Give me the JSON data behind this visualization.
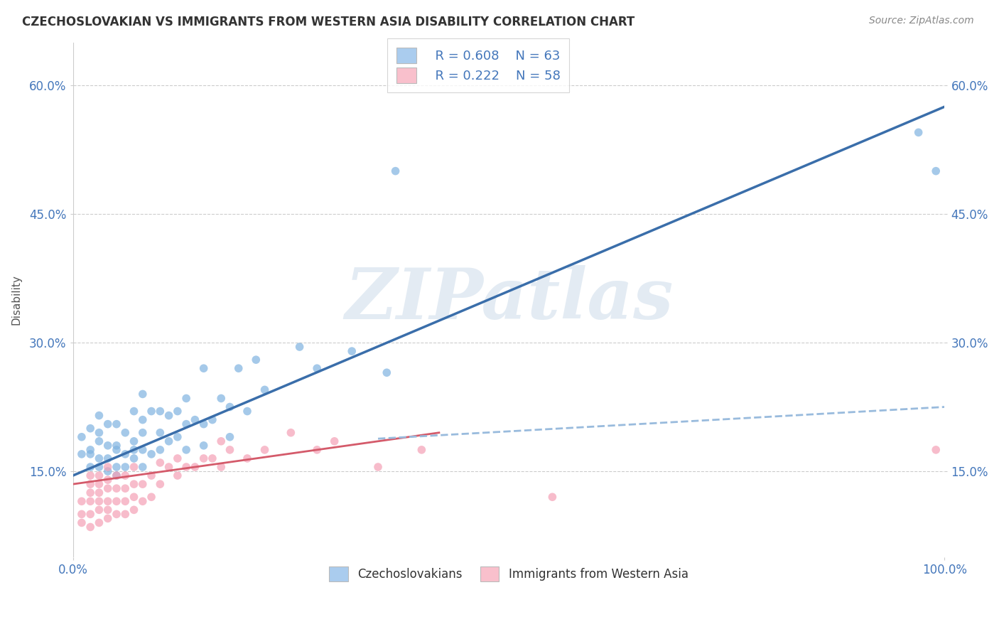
{
  "title": "CZECHOSLOVAKIAN VS IMMIGRANTS FROM WESTERN ASIA DISABILITY CORRELATION CHART",
  "source": "Source: ZipAtlas.com",
  "ylabel": "Disability",
  "xlim": [
    0,
    1.0
  ],
  "ylim": [
    0.05,
    0.65
  ],
  "ytick_values": [
    0.15,
    0.3,
    0.45,
    0.6
  ],
  "ytick_labels": [
    "15.0%",
    "30.0%",
    "45.0%",
    "60.0%"
  ],
  "xtick_values": [
    0.0,
    1.0
  ],
  "xtick_labels": [
    "0.0%",
    "100.0%"
  ],
  "grid_color": "#cccccc",
  "background_color": "#ffffff",
  "watermark_text": "ZIPatlas",
  "legend_r1": "R = 0.608",
  "legend_n1": "N = 63",
  "legend_r2": "R = 0.222",
  "legend_n2": "N = 58",
  "blue_scatter_color": "#7fb3e0",
  "pink_scatter_color": "#f4a0b5",
  "blue_fill": "#aaccee",
  "pink_fill": "#f9c0cc",
  "trend_blue_color": "#3a6eaa",
  "trend_pink_color": "#d45a6a",
  "trend_dash_color": "#99bbdd",
  "title_color": "#333333",
  "axis_label_color": "#555555",
  "tick_color": "#4477bb",
  "legend_text_color": "#4477bb",
  "trend_blue_x0": 0.0,
  "trend_blue_x1": 1.0,
  "trend_blue_y0": 0.145,
  "trend_blue_y1": 0.575,
  "trend_pink_x0": 0.0,
  "trend_pink_x1": 0.42,
  "trend_pink_y0": 0.135,
  "trend_pink_y1": 0.195,
  "trend_dash_x0": 0.35,
  "trend_dash_x1": 1.0,
  "trend_dash_y0": 0.188,
  "trend_dash_y1": 0.225,
  "scatter_blue_x": [
    0.01,
    0.01,
    0.02,
    0.02,
    0.02,
    0.02,
    0.03,
    0.03,
    0.03,
    0.03,
    0.03,
    0.04,
    0.04,
    0.04,
    0.04,
    0.05,
    0.05,
    0.05,
    0.05,
    0.05,
    0.06,
    0.06,
    0.06,
    0.07,
    0.07,
    0.07,
    0.07,
    0.08,
    0.08,
    0.08,
    0.08,
    0.08,
    0.09,
    0.09,
    0.1,
    0.1,
    0.1,
    0.11,
    0.11,
    0.12,
    0.12,
    0.13,
    0.13,
    0.13,
    0.14,
    0.15,
    0.15,
    0.15,
    0.16,
    0.17,
    0.18,
    0.18,
    0.19,
    0.2,
    0.21,
    0.22,
    0.26,
    0.28,
    0.32,
    0.36,
    0.37,
    0.97,
    0.99
  ],
  "scatter_blue_y": [
    0.17,
    0.19,
    0.155,
    0.17,
    0.175,
    0.2,
    0.155,
    0.165,
    0.185,
    0.195,
    0.215,
    0.15,
    0.165,
    0.18,
    0.205,
    0.145,
    0.155,
    0.175,
    0.18,
    0.205,
    0.155,
    0.17,
    0.195,
    0.165,
    0.175,
    0.185,
    0.22,
    0.155,
    0.175,
    0.195,
    0.21,
    0.24,
    0.17,
    0.22,
    0.175,
    0.195,
    0.22,
    0.185,
    0.215,
    0.19,
    0.22,
    0.175,
    0.205,
    0.235,
    0.21,
    0.18,
    0.205,
    0.27,
    0.21,
    0.235,
    0.19,
    0.225,
    0.27,
    0.22,
    0.28,
    0.245,
    0.295,
    0.27,
    0.29,
    0.265,
    0.5,
    0.545,
    0.5
  ],
  "scatter_pink_x": [
    0.01,
    0.01,
    0.01,
    0.02,
    0.02,
    0.02,
    0.02,
    0.02,
    0.02,
    0.03,
    0.03,
    0.03,
    0.03,
    0.03,
    0.03,
    0.04,
    0.04,
    0.04,
    0.04,
    0.04,
    0.04,
    0.05,
    0.05,
    0.05,
    0.05,
    0.06,
    0.06,
    0.06,
    0.06,
    0.07,
    0.07,
    0.07,
    0.07,
    0.08,
    0.08,
    0.09,
    0.09,
    0.1,
    0.1,
    0.11,
    0.12,
    0.12,
    0.13,
    0.14,
    0.15,
    0.16,
    0.17,
    0.17,
    0.18,
    0.2,
    0.22,
    0.25,
    0.28,
    0.3,
    0.35,
    0.4,
    0.55,
    0.99
  ],
  "scatter_pink_y": [
    0.09,
    0.1,
    0.115,
    0.085,
    0.1,
    0.115,
    0.125,
    0.135,
    0.145,
    0.09,
    0.105,
    0.115,
    0.125,
    0.135,
    0.145,
    0.095,
    0.105,
    0.115,
    0.13,
    0.14,
    0.155,
    0.1,
    0.115,
    0.13,
    0.145,
    0.1,
    0.115,
    0.13,
    0.145,
    0.105,
    0.12,
    0.135,
    0.155,
    0.115,
    0.135,
    0.12,
    0.145,
    0.135,
    0.16,
    0.155,
    0.145,
    0.165,
    0.155,
    0.155,
    0.165,
    0.165,
    0.155,
    0.185,
    0.175,
    0.165,
    0.175,
    0.195,
    0.175,
    0.185,
    0.155,
    0.175,
    0.12,
    0.175
  ]
}
